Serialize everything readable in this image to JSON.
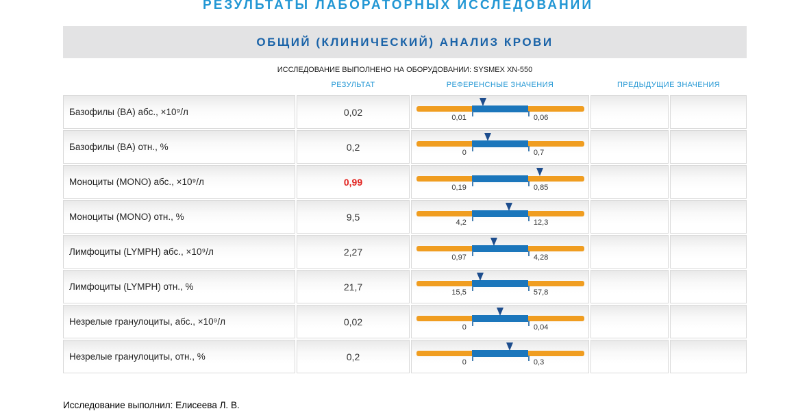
{
  "page": {
    "title": "РЕЗУЛЬТАТЫ ЛАБОРАТОРНЫХ ИССЛЕДОВАНИЙ",
    "section_title": "ОБЩИЙ (КЛИНИЧЕСКИЙ) АНАЛИЗ КРОВИ",
    "equipment_note": "ИССЛЕДОВАНИЕ ВЫПОЛНЕНО НА ОБОРУДОВАНИИ: SYSMEX XN-550",
    "footer": "Исследование выполнил: Елисеева Л. В."
  },
  "table": {
    "headers": {
      "result": "РЕЗУЛЬТАТ",
      "reference": "РЕФЕРЕНСНЫЕ ЗНАЧЕНИЯ",
      "previous": "ПРЕДЫДУЩИЕ ЗНАЧЕНИЯ"
    },
    "rows": [
      {
        "name": "Базофилы (BA) абс., ×10⁹/л",
        "result": "0,02",
        "out_of_range": false,
        "ref_low": "0,01",
        "ref_high": "0,06"
      },
      {
        "name": "Базофилы (BA) отн., %",
        "result": "0,2",
        "out_of_range": false,
        "ref_low": "0",
        "ref_high": "0,7"
      },
      {
        "name": "Моноциты (MONO) абс., ×10⁹/л",
        "result": "0,99",
        "out_of_range": true,
        "ref_low": "0,19",
        "ref_high": "0,85"
      },
      {
        "name": "Моноциты (MONO) отн., %",
        "result": "9,5",
        "out_of_range": false,
        "ref_low": "4,2",
        "ref_high": "12,3"
      },
      {
        "name": "Лимфоциты (LYMPH) абс., ×10⁹/л",
        "result": "2,27",
        "out_of_range": false,
        "ref_low": "0,97",
        "ref_high": "4,28"
      },
      {
        "name": "Лимфоциты (LYMPH) отн., %",
        "result": "21,7",
        "out_of_range": false,
        "ref_low": "15,5",
        "ref_high": "57,8"
      },
      {
        "name": "Незрелые гранулоциты, абс., ×10⁹/л",
        "result": "0,02",
        "out_of_range": false,
        "ref_low": "0",
        "ref_high": "0,04"
      },
      {
        "name": "Незрелые гранулоциты, отн., %",
        "result": "0,2",
        "out_of_range": false,
        "ref_low": "0",
        "ref_high": "0,3"
      }
    ]
  },
  "colors": {
    "accent_blue": "#2397d4",
    "title_blue": "#1a63a8",
    "bar_orange": "#f09d20",
    "bar_blue": "#1b76bb",
    "marker_blue": "#1d4d8d",
    "out_of_range_red": "#e2231f"
  }
}
